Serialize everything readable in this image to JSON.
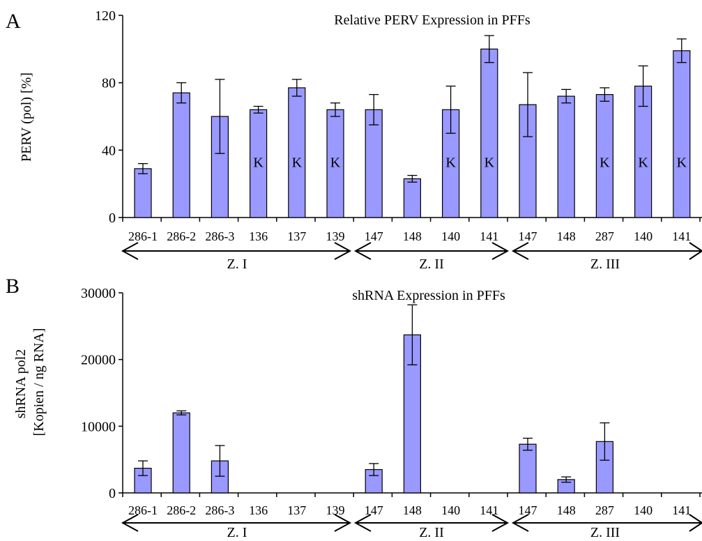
{
  "figure": {
    "background": "#ffffff"
  },
  "chart_data": [
    {
      "panel": "A",
      "type": "bar",
      "title": "Relative PERV Expression in PFFs",
      "xlabel": "",
      "ylabel": "PERV (pol) [%]",
      "ylim": [
        0,
        120
      ],
      "yticks": [
        0,
        40,
        80,
        120
      ],
      "grid": false,
      "legend": "none",
      "bar_color": "#9999ff",
      "categories": [
        "286-1",
        "286-2",
        "286-3",
        "136",
        "137",
        "139",
        "147",
        "148",
        "140",
        "141",
        "147",
        "148",
        "287",
        "140",
        "141"
      ],
      "values": [
        29,
        74,
        60,
        64,
        77,
        64,
        64,
        23,
        64,
        100,
        67,
        72,
        73,
        78,
        99
      ],
      "errors": [
        3,
        6,
        22,
        2,
        5,
        4,
        9,
        2,
        14,
        8,
        19,
        4,
        4,
        12,
        7
      ],
      "bar_labels": [
        "",
        "",
        "",
        "K",
        "K",
        "K",
        "",
        "",
        "K",
        "K",
        "",
        "",
        "K",
        "K",
        "K"
      ],
      "groups": [
        {
          "label": "Z. I",
          "from": 0,
          "to": 5
        },
        {
          "label": "Z. II",
          "from": 6,
          "to": 9
        },
        {
          "label": "Z. III",
          "from": 10,
          "to": 14
        }
      ]
    },
    {
      "panel": "B",
      "type": "bar",
      "title": "shRNA Expression in PFFs",
      "xlabel": "",
      "ylabel": [
        "shRNA pol2",
        "[Kopien / ng RNA]"
      ],
      "ylim": [
        0,
        30000
      ],
      "yticks": [
        0,
        10000,
        20000,
        30000
      ],
      "grid": false,
      "legend": "none",
      "bar_color": "#9999ff",
      "categories": [
        "286-1",
        "286-2",
        "286-3",
        "136",
        "137",
        "139",
        "147",
        "148",
        "140",
        "141",
        "147",
        "148",
        "287",
        "140",
        "141"
      ],
      "values": [
        3700,
        12000,
        4800,
        0,
        0,
        0,
        3500,
        23700,
        0,
        0,
        7300,
        2000,
        7700,
        0,
        0
      ],
      "errors": [
        1100,
        300,
        2300,
        0,
        0,
        0,
        900,
        4500,
        0,
        0,
        900,
        400,
        2800,
        0,
        0
      ],
      "bar_labels": [
        "",
        "",
        "",
        "",
        "",
        "",
        "",
        "",
        "",
        "",
        "",
        "",
        "",
        "",
        ""
      ],
      "groups": [
        {
          "label": "Z. I",
          "from": 0,
          "to": 5
        },
        {
          "label": "Z. II",
          "from": 6,
          "to": 9
        },
        {
          "label": "Z. III",
          "from": 10,
          "to": 14
        }
      ]
    }
  ]
}
